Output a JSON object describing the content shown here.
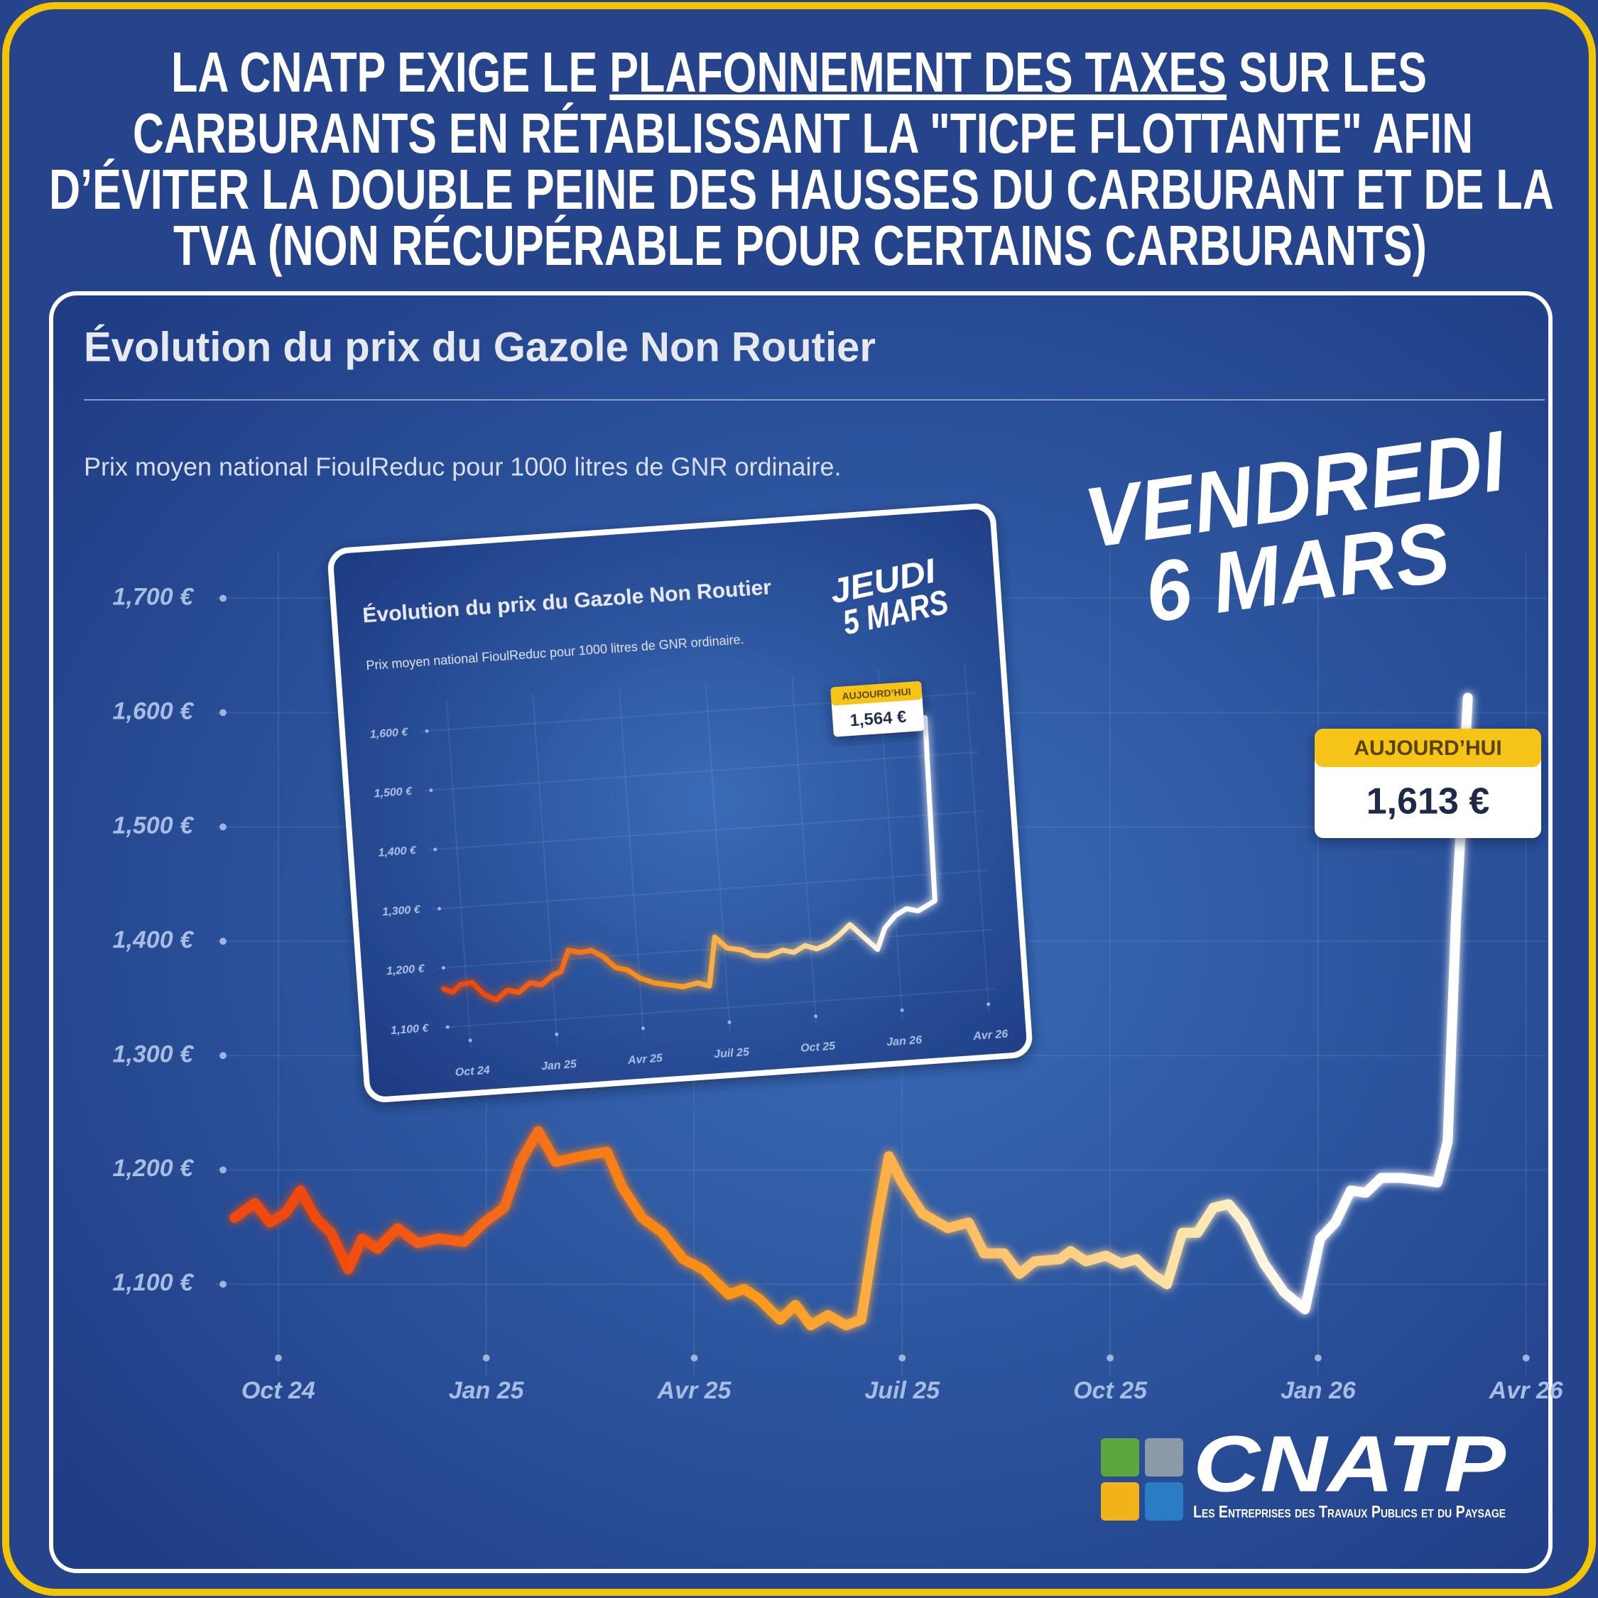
{
  "headline": {
    "lines": [
      [
        "LA CNATP EXIGE LE ",
        "PLAFONNEMENT DES TAXES",
        " SUR LES"
      ],
      [
        "CARBURANTS EN RÉTABLISSANT LA \"TICPE FLOTTANTE\" AFIN"
      ],
      [
        "D’ÉVITER LA DOUBLE PEINE DES HAUSSES DU CARBURANT ET DE LA"
      ],
      [
        "TVA (NON RÉCUPÉRABLE POUR CERTAINS CARBURANTS)"
      ]
    ]
  },
  "chart_data": [
    {
      "type": "line",
      "title": "Évolution du prix du Gazole Non Routier",
      "subtitle": "Prix moyen national FioulReduc pour 1000 litres de GNR ordinaire.",
      "annotation": [
        "VENDREDI",
        "6 MARS"
      ],
      "callout": {
        "label": "AUJOURD’HUI",
        "value_label": "1,613 €"
      },
      "colors": [
        "#ef4a10",
        "#fb9818",
        "#fde6b0",
        "#ffffff"
      ],
      "x": [
        -0.63,
        -0.34,
        -0.12,
        0.1,
        0.32,
        0.54,
        0.76,
        1.01,
        1.21,
        1.43,
        1.72,
        2.01,
        2.31,
        2.68,
        2.97,
        3.26,
        3.49,
        3.75,
        4.0,
        4.37,
        4.74,
        4.96,
        5.25,
        5.54,
        5.84,
        6.13,
        6.5,
        6.72,
        6.94,
        7.24,
        7.46,
        7.68,
        7.93,
        8.19,
        8.41,
        8.63,
        8.81,
        9.0,
        9.29,
        9.66,
        9.96,
        10.18,
        10.47,
        10.69,
        10.91,
        11.28,
        11.43,
        11.65,
        11.94,
        12.16,
        12.38,
        12.6,
        12.82,
        13.04,
        13.26,
        13.49,
        13.71,
        13.93,
        14.22,
        14.51,
        14.81,
        15.03,
        15.25,
        15.47,
        15.69,
        15.91,
        16.21,
        16.5,
        16.72,
        16.87,
        16.99,
        17.16
      ],
      "values": [
        1158,
        1171,
        1154,
        1162,
        1182,
        1158,
        1145,
        1113,
        1140,
        1131,
        1149,
        1136,
        1140,
        1137,
        1154,
        1167,
        1207,
        1234,
        1207,
        1212,
        1216,
        1185,
        1158,
        1145,
        1122,
        1113,
        1091,
        1096,
        1087,
        1069,
        1082,
        1064,
        1073,
        1064,
        1069,
        1154,
        1212,
        1189,
        1162,
        1149,
        1154,
        1127,
        1127,
        1109,
        1120,
        1122,
        1129,
        1120,
        1125,
        1118,
        1122,
        1109,
        1100,
        1145,
        1145,
        1167,
        1170,
        1154,
        1118,
        1093,
        1078,
        1140,
        1154,
        1182,
        1180,
        1193,
        1193,
        1191,
        1189,
        1225,
        1421,
        1613
      ],
      "xlim": [
        -0.9,
        18.3
      ],
      "xticks": [
        {
          "value": 0,
          "label": "Oct 24"
        },
        {
          "value": 3,
          "label": "Jan 25"
        },
        {
          "value": 6,
          "label": "Avr 25"
        },
        {
          "value": 9,
          "label": "Juil 25"
        },
        {
          "value": 12,
          "label": "Oct 25"
        },
        {
          "value": 15,
          "label": "Jan 26"
        },
        {
          "value": 18,
          "label": "Avr 26"
        }
      ],
      "ylim": [
        1020,
        1740
      ],
      "yticks": [
        {
          "value": 1100,
          "label": "1,100 €"
        },
        {
          "value": 1200,
          "label": "1,200 €"
        },
        {
          "value": 1300,
          "label": "1,300 €"
        },
        {
          "value": 1400,
          "label": "1,400 €"
        },
        {
          "value": 1500,
          "label": "1,500 €"
        },
        {
          "value": 1600,
          "label": "1,600 €"
        },
        {
          "value": 1700,
          "label": "1,700 €"
        }
      ],
      "grid": true
    },
    {
      "type": "line",
      "title": "Évolution du prix du Gazole Non Routier",
      "subtitle": "Prix moyen national FioulReduc pour 1000 litres de GNR ordinaire.",
      "annotation": [
        "JEUDI",
        "5 MARS"
      ],
      "callout": {
        "label": "AUJOURD’HUI",
        "value_label": "1,564 €"
      },
      "colors": [
        "#ef4a10",
        "#fb9818",
        "#fde6b0",
        "#ffffff"
      ],
      "x": [
        -0.8,
        -0.5,
        -0.2,
        0.2,
        0.6,
        1,
        1.4,
        1.8,
        2.2,
        2.6,
        3,
        3.3,
        3.6,
        4,
        4.4,
        4.8,
        5.2,
        5.6,
        6,
        6.5,
        7,
        7.5,
        8,
        8.4,
        8.7,
        9.1,
        9.6,
        10,
        10.5,
        11,
        11.4,
        11.8,
        12.2,
        12.6,
        13,
        13.4,
        13.8,
        14.3,
        14.6,
        15,
        15.4,
        15.8,
        16.2,
        16.4,
        16.5
      ],
      "values": [
        1165,
        1158,
        1170,
        1172,
        1150,
        1140,
        1155,
        1150,
        1165,
        1160,
        1175,
        1180,
        1215,
        1210,
        1212,
        1200,
        1180,
        1175,
        1160,
        1150,
        1145,
        1140,
        1145,
        1138,
        1220,
        1200,
        1195,
        1185,
        1182,
        1190,
        1185,
        1195,
        1188,
        1195,
        1208,
        1225,
        1205,
        1180,
        1215,
        1235,
        1245,
        1240,
        1250,
        1255,
        1564
      ],
      "xlim": [
        -1,
        18.3
      ],
      "xticks": [
        {
          "value": 0,
          "label": "Oct 24"
        },
        {
          "value": 3,
          "label": "Jan 25"
        },
        {
          "value": 6,
          "label": "Avr 25"
        },
        {
          "value": 9,
          "label": "Juil 25"
        },
        {
          "value": 12,
          "label": "Oct 25"
        },
        {
          "value": 15,
          "label": "Jan 26"
        },
        {
          "value": 18,
          "label": "Avr 26"
        }
      ],
      "ylim": [
        1060,
        1650
      ],
      "yticks": [
        {
          "value": 1100,
          "label": "1,100 €"
        },
        {
          "value": 1200,
          "label": "1,200 €"
        },
        {
          "value": 1300,
          "label": "1,300 €"
        },
        {
          "value": 1400,
          "label": "1,400 €"
        },
        {
          "value": 1500,
          "label": "1,500 €"
        },
        {
          "value": 1600,
          "label": "1,600 €"
        }
      ],
      "grid": true
    }
  ],
  "brand": {
    "name": "CNATP",
    "tagline": "Les Entreprises des Travaux Publics et du Paysage"
  }
}
